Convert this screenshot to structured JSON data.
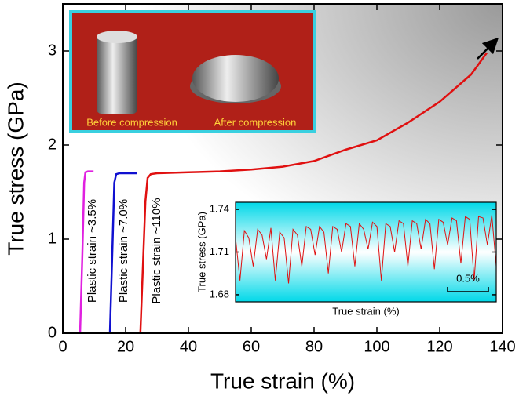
{
  "chart_data": [
    {
      "type": "line",
      "xlabel": "True strain (%)",
      "ylabel": "True stress (GPa)",
      "xlim": [
        0,
        140
      ],
      "ylim": [
        0,
        3.5
      ],
      "xticks": [
        0,
        20,
        40,
        60,
        80,
        100,
        120,
        140
      ],
      "yticks": [
        0,
        1,
        2,
        3
      ],
      "series": [
        {
          "color": "#e020e0",
          "x": [
            5.5,
            6.2,
            6.8,
            7.2,
            8,
            9,
            9.8
          ],
          "values": [
            0,
            0.8,
            1.6,
            1.71,
            1.72,
            1.72,
            1.72
          ]
        },
        {
          "color": "#1010d0",
          "x": [
            15,
            15.8,
            16.4,
            17,
            18,
            20,
            22,
            23.5
          ],
          "values": [
            0,
            0.9,
            1.6,
            1.69,
            1.7,
            1.7,
            1.7,
            1.7
          ]
        },
        {
          "color": "#e01010",
          "x": [
            24.7,
            25.5,
            26.3,
            27,
            28,
            30,
            40,
            50,
            60,
            70,
            80,
            90,
            100,
            110,
            120,
            130,
            135
          ],
          "values": [
            0,
            0.7,
            1.4,
            1.65,
            1.69,
            1.7,
            1.71,
            1.72,
            1.74,
            1.77,
            1.83,
            1.95,
            2.05,
            2.24,
            2.46,
            2.75,
            2.98
          ]
        }
      ],
      "annotations": [
        "Plastic strain ~3.5%",
        "Plastic strain ~7.0%",
        "Plastic strain ~110%"
      ],
      "photo_labels": [
        "Before compression",
        "After compression"
      ]
    },
    {
      "type": "line",
      "xlabel": "True strain (%)",
      "ylabel": "True stress (GPa)",
      "ylim": [
        1.675,
        1.745
      ],
      "yticks": [
        1.68,
        1.71,
        1.74
      ],
      "scale_bar": "0.5%",
      "series": [
        {
          "color": "#e01010",
          "values": [
            1.72,
            1.69,
            1.725,
            1.72,
            1.7,
            1.726,
            1.722,
            1.705,
            1.727,
            1.69,
            1.724,
            1.72,
            1.688,
            1.726,
            1.722,
            1.7,
            1.728,
            1.726,
            1.708,
            1.728,
            1.724,
            1.695,
            1.728,
            1.726,
            1.71,
            1.73,
            1.728,
            1.7,
            1.73,
            1.726,
            1.712,
            1.731,
            1.728,
            1.69,
            1.73,
            1.728,
            1.71,
            1.732,
            1.73,
            1.7,
            1.732,
            1.73,
            1.712,
            1.733,
            1.73,
            1.698,
            1.733,
            1.731,
            1.715,
            1.734,
            1.732,
            1.702,
            1.735,
            1.733,
            1.69,
            1.735,
            1.734,
            1.715,
            1.736,
            1.7
          ]
        }
      ]
    }
  ]
}
